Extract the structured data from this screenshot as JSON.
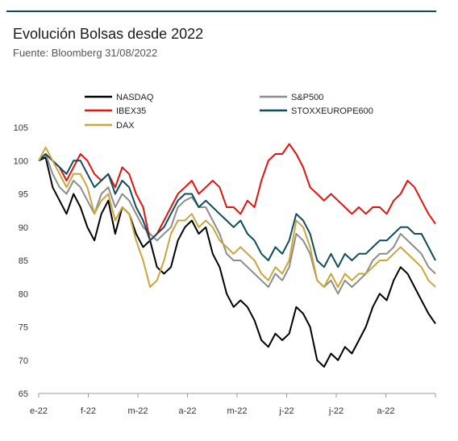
{
  "header": {
    "title": "Evolución Bolsas desde 2022",
    "subtitle": "Fuente: Bloomberg 31/08/2022"
  },
  "chart_data": {
    "type": "line",
    "title": "Evolución Bolsas desde 2022",
    "subtitle": "Fuente: Bloomberg 31/08/2022",
    "xlabel": "",
    "ylabel": "",
    "ylim": [
      65,
      105
    ],
    "yticks": [
      65,
      70,
      75,
      80,
      85,
      90,
      95,
      100,
      105
    ],
    "xticks": [
      "e-22",
      "f-22",
      "m-22",
      "a-22",
      "m-22",
      "j-22",
      "j-22",
      "a-22"
    ],
    "grid": false,
    "legend_position": "top",
    "series": [
      {
        "name": "NASDAQ",
        "color": "#000000",
        "points": [
          [
            0,
            100
          ],
          [
            2,
            100.5
          ],
          [
            4,
            96
          ],
          [
            6,
            94
          ],
          [
            8,
            92
          ],
          [
            10,
            95
          ],
          [
            12,
            93
          ],
          [
            14,
            90
          ],
          [
            16,
            88
          ],
          [
            18,
            92
          ],
          [
            20,
            94
          ],
          [
            22,
            89
          ],
          [
            24,
            93
          ],
          [
            26,
            92
          ],
          [
            28,
            89
          ],
          [
            30,
            87
          ],
          [
            32,
            88
          ],
          [
            34,
            84
          ],
          [
            36,
            83
          ],
          [
            38,
            84
          ],
          [
            40,
            88
          ],
          [
            42,
            90
          ],
          [
            44,
            91
          ],
          [
            46,
            89
          ],
          [
            48,
            90
          ],
          [
            50,
            86
          ],
          [
            52,
            84
          ],
          [
            54,
            80
          ],
          [
            56,
            78
          ],
          [
            58,
            79
          ],
          [
            60,
            78
          ],
          [
            62,
            76
          ],
          [
            64,
            73
          ],
          [
            66,
            72
          ],
          [
            68,
            74
          ],
          [
            70,
            73
          ],
          [
            72,
            74
          ],
          [
            74,
            78
          ],
          [
            76,
            77
          ],
          [
            78,
            75
          ],
          [
            80,
            70
          ],
          [
            82,
            69
          ],
          [
            84,
            71
          ],
          [
            86,
            70
          ],
          [
            88,
            72
          ],
          [
            90,
            71
          ],
          [
            92,
            73
          ],
          [
            94,
            75
          ],
          [
            96,
            78
          ],
          [
            98,
            80
          ],
          [
            100,
            79
          ],
          [
            102,
            82
          ],
          [
            104,
            84
          ],
          [
            106,
            83
          ],
          [
            108,
            81
          ],
          [
            110,
            79
          ],
          [
            112,
            77
          ],
          [
            114,
            75.5
          ]
        ]
      },
      {
        "name": "S&P500",
        "color": "#8c8c8c",
        "points": [
          [
            0,
            100
          ],
          [
            2,
            101
          ],
          [
            4,
            98
          ],
          [
            6,
            96
          ],
          [
            8,
            95
          ],
          [
            10,
            97
          ],
          [
            12,
            96
          ],
          [
            14,
            94
          ],
          [
            16,
            92
          ],
          [
            18,
            95
          ],
          [
            20,
            96
          ],
          [
            22,
            93
          ],
          [
            24,
            95
          ],
          [
            26,
            94
          ],
          [
            28,
            92
          ],
          [
            30,
            90
          ],
          [
            32,
            89
          ],
          [
            34,
            88
          ],
          [
            36,
            89
          ],
          [
            38,
            90
          ],
          [
            40,
            93
          ],
          [
            42,
            94
          ],
          [
            44,
            94.5
          ],
          [
            46,
            93
          ],
          [
            48,
            93
          ],
          [
            50,
            91
          ],
          [
            52,
            89
          ],
          [
            54,
            86
          ],
          [
            56,
            85
          ],
          [
            58,
            85
          ],
          [
            60,
            84
          ],
          [
            62,
            83
          ],
          [
            64,
            82
          ],
          [
            66,
            81
          ],
          [
            68,
            83
          ],
          [
            70,
            82
          ],
          [
            72,
            84
          ],
          [
            74,
            89
          ],
          [
            76,
            88
          ],
          [
            78,
            86
          ],
          [
            80,
            82
          ],
          [
            82,
            81
          ],
          [
            84,
            82
          ],
          [
            86,
            80
          ],
          [
            88,
            82
          ],
          [
            90,
            81
          ],
          [
            92,
            82
          ],
          [
            94,
            83
          ],
          [
            96,
            85
          ],
          [
            98,
            86
          ],
          [
            100,
            86
          ],
          [
            102,
            87
          ],
          [
            104,
            89
          ],
          [
            106,
            88
          ],
          [
            108,
            87
          ],
          [
            110,
            86
          ],
          [
            112,
            84
          ],
          [
            114,
            83
          ]
        ]
      },
      {
        "name": "IBEX35",
        "color": "#e3120b",
        "points": [
          [
            0,
            100
          ],
          [
            2,
            101
          ],
          [
            4,
            100
          ],
          [
            6,
            99
          ],
          [
            8,
            97
          ],
          [
            10,
            99
          ],
          [
            12,
            101
          ],
          [
            14,
            100
          ],
          [
            16,
            98
          ],
          [
            18,
            97
          ],
          [
            20,
            98
          ],
          [
            22,
            96
          ],
          [
            24,
            99
          ],
          [
            26,
            98
          ],
          [
            28,
            95
          ],
          [
            30,
            93
          ],
          [
            32,
            88
          ],
          [
            34,
            89
          ],
          [
            36,
            91
          ],
          [
            38,
            93
          ],
          [
            40,
            95
          ],
          [
            42,
            96
          ],
          [
            44,
            97
          ],
          [
            46,
            95
          ],
          [
            48,
            96
          ],
          [
            50,
            97
          ],
          [
            52,
            96
          ],
          [
            54,
            93
          ],
          [
            56,
            93
          ],
          [
            58,
            92
          ],
          [
            60,
            94
          ],
          [
            62,
            93
          ],
          [
            64,
            97
          ],
          [
            66,
            100
          ],
          [
            68,
            101
          ],
          [
            70,
            101
          ],
          [
            72,
            102.5
          ],
          [
            74,
            101
          ],
          [
            76,
            99
          ],
          [
            78,
            96
          ],
          [
            80,
            95
          ],
          [
            82,
            94
          ],
          [
            84,
            95
          ],
          [
            86,
            94
          ],
          [
            88,
            93
          ],
          [
            90,
            92
          ],
          [
            92,
            93
          ],
          [
            94,
            92
          ],
          [
            96,
            93
          ],
          [
            98,
            93
          ],
          [
            100,
            92
          ],
          [
            102,
            94
          ],
          [
            104,
            95
          ],
          [
            106,
            97
          ],
          [
            108,
            96
          ],
          [
            110,
            94
          ],
          [
            112,
            92
          ],
          [
            114,
            90.5
          ]
        ]
      },
      {
        "name": "STOXXEUROPE600",
        "color": "#0f4c5c",
        "points": [
          [
            0,
            100
          ],
          [
            2,
            101
          ],
          [
            4,
            100
          ],
          [
            6,
            99
          ],
          [
            8,
            98
          ],
          [
            10,
            100
          ],
          [
            12,
            100
          ],
          [
            14,
            98
          ],
          [
            16,
            96
          ],
          [
            18,
            97
          ],
          [
            20,
            98
          ],
          [
            22,
            95
          ],
          [
            24,
            97
          ],
          [
            26,
            96
          ],
          [
            28,
            93
          ],
          [
            30,
            91
          ],
          [
            32,
            88
          ],
          [
            34,
            89
          ],
          [
            36,
            90
          ],
          [
            38,
            92
          ],
          [
            40,
            94
          ],
          [
            42,
            95
          ],
          [
            44,
            95
          ],
          [
            46,
            93
          ],
          [
            48,
            94
          ],
          [
            50,
            93
          ],
          [
            52,
            92
          ],
          [
            54,
            91
          ],
          [
            56,
            90
          ],
          [
            58,
            91
          ],
          [
            60,
            89
          ],
          [
            62,
            88
          ],
          [
            64,
            86
          ],
          [
            66,
            85
          ],
          [
            68,
            87
          ],
          [
            70,
            86
          ],
          [
            72,
            88
          ],
          [
            74,
            92
          ],
          [
            76,
            91
          ],
          [
            78,
            89
          ],
          [
            80,
            85
          ],
          [
            82,
            84
          ],
          [
            84,
            86
          ],
          [
            86,
            84
          ],
          [
            88,
            86
          ],
          [
            90,
            85
          ],
          [
            92,
            86
          ],
          [
            94,
            86
          ],
          [
            96,
            87
          ],
          [
            98,
            88
          ],
          [
            100,
            88
          ],
          [
            102,
            89
          ],
          [
            104,
            90
          ],
          [
            106,
            90
          ],
          [
            108,
            89
          ],
          [
            110,
            89
          ],
          [
            112,
            87
          ],
          [
            114,
            85
          ]
        ]
      },
      {
        "name": "DAX",
        "color": "#c9a63a",
        "points": [
          [
            0,
            100
          ],
          [
            2,
            102
          ],
          [
            4,
            100
          ],
          [
            6,
            98
          ],
          [
            8,
            96
          ],
          [
            10,
            98
          ],
          [
            12,
            98
          ],
          [
            14,
            96
          ],
          [
            16,
            92
          ],
          [
            18,
            94
          ],
          [
            20,
            95
          ],
          [
            22,
            91
          ],
          [
            24,
            93
          ],
          [
            26,
            92
          ],
          [
            28,
            88
          ],
          [
            30,
            85
          ],
          [
            32,
            81
          ],
          [
            34,
            82
          ],
          [
            36,
            85
          ],
          [
            38,
            89
          ],
          [
            40,
            91
          ],
          [
            42,
            91
          ],
          [
            44,
            92
          ],
          [
            46,
            90
          ],
          [
            48,
            91
          ],
          [
            50,
            90
          ],
          [
            52,
            88
          ],
          [
            54,
            87
          ],
          [
            56,
            86
          ],
          [
            58,
            87
          ],
          [
            60,
            86
          ],
          [
            62,
            85
          ],
          [
            64,
            83
          ],
          [
            66,
            82
          ],
          [
            68,
            84
          ],
          [
            70,
            83
          ],
          [
            72,
            85
          ],
          [
            74,
            91
          ],
          [
            76,
            90
          ],
          [
            78,
            87
          ],
          [
            80,
            82
          ],
          [
            82,
            81
          ],
          [
            84,
            83
          ],
          [
            86,
            81
          ],
          [
            88,
            83
          ],
          [
            90,
            82
          ],
          [
            92,
            83
          ],
          [
            94,
            83
          ],
          [
            96,
            84
          ],
          [
            98,
            85
          ],
          [
            100,
            85
          ],
          [
            102,
            86
          ],
          [
            104,
            87
          ],
          [
            106,
            86
          ],
          [
            108,
            85
          ],
          [
            110,
            84
          ],
          [
            112,
            82
          ],
          [
            114,
            81
          ]
        ]
      }
    ]
  }
}
